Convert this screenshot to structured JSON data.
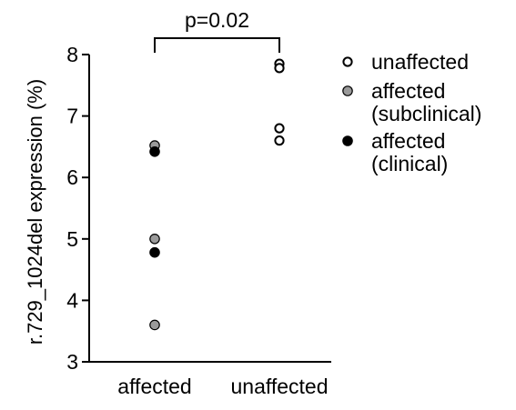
{
  "chart_data": {
    "type": "scatter",
    "title": "",
    "xlabel": "",
    "ylabel": "r.729_1024del expression (%)",
    "categories": [
      "affected",
      "unaffected"
    ],
    "ylim": [
      3,
      8
    ],
    "yticks": [
      3,
      4,
      5,
      6,
      7,
      8
    ],
    "grid": false,
    "legend_position": "top-right",
    "series": [
      {
        "name": "unaffected",
        "marker": "open-circle",
        "color": "#000000",
        "points": [
          {
            "category": "unaffected",
            "y": 7.85
          },
          {
            "category": "unaffected",
            "y": 7.78
          },
          {
            "category": "unaffected",
            "y": 6.8
          },
          {
            "category": "unaffected",
            "y": 6.6
          }
        ]
      },
      {
        "name": "affected\n(subclinical)",
        "marker": "filled-circle",
        "color": "#9a9a9a",
        "points": [
          {
            "category": "affected",
            "y": 6.52
          },
          {
            "category": "affected",
            "y": 5.0
          },
          {
            "category": "affected",
            "y": 3.6
          }
        ]
      },
      {
        "name": "affected\n(clinical)",
        "marker": "filled-circle",
        "color": "#000000",
        "points": [
          {
            "category": "affected",
            "y": 6.42
          },
          {
            "category": "affected",
            "y": 4.78
          }
        ]
      }
    ],
    "annotations": [
      {
        "type": "significance-bracket",
        "between": [
          "affected",
          "unaffected"
        ],
        "text": "p=0.02"
      }
    ]
  }
}
